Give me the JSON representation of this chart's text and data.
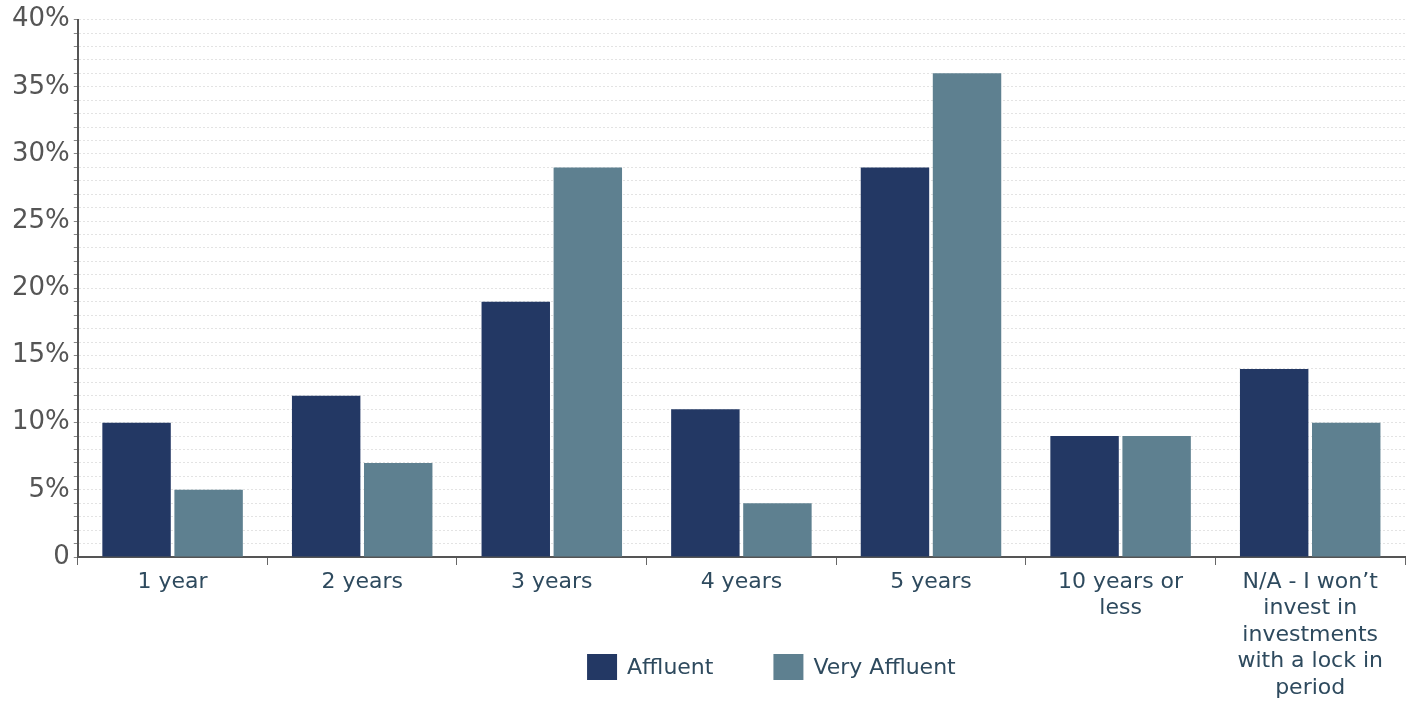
{
  "chart_data": {
    "type": "bar",
    "categories": [
      "1 year",
      "2 years",
      "3 years",
      "4 years",
      "5 years",
      "10 years or less",
      "N/A - I won’t invest in investments with a lock in period"
    ],
    "series": [
      {
        "name": "Affluent",
        "color": "#233864",
        "values": [
          10,
          12,
          19,
          11,
          29,
          9,
          14
        ]
      },
      {
        "name": "Very Affluent",
        "color": "#5e8090",
        "values": [
          5,
          7,
          29,
          4,
          36,
          9,
          10
        ]
      }
    ],
    "ylim": [
      0,
      40
    ],
    "yticks": [
      0,
      {
        "value": 1,
        "label": null
      },
      {
        "value": 2,
        "label": null
      },
      {
        "value": 3,
        "label": null
      },
      {
        "value": 4,
        "label": null
      },
      {
        "value": 5,
        "label": "5%"
      },
      {
        "value": 6,
        "label": null
      },
      {
        "value": 7,
        "label": null
      },
      {
        "value": 8,
        "label": null
      },
      {
        "value": 9,
        "label": null
      },
      {
        "value": 10,
        "label": "10%"
      },
      {
        "value": 11,
        "label": null
      },
      {
        "value": 12,
        "label": null
      },
      {
        "value": 13,
        "label": null
      },
      {
        "value": 14,
        "label": null
      },
      {
        "value": 15,
        "label": "15%"
      },
      {
        "value": 16,
        "label": null
      },
      {
        "value": 17,
        "label": null
      },
      {
        "value": 18,
        "label": null
      },
      {
        "value": 19,
        "label": null
      },
      {
        "value": 20,
        "label": "20%"
      },
      {
        "value": 21,
        "label": null
      },
      {
        "value": 22,
        "label": null
      },
      {
        "value": 23,
        "label": null
      },
      {
        "value": 24,
        "label": null
      },
      {
        "value": 25,
        "label": "25%"
      },
      {
        "value": 26,
        "label": null
      },
      {
        "value": 27,
        "label": null
      },
      {
        "value": 28,
        "label": null
      },
      {
        "value": 29,
        "label": null
      },
      {
        "value": 30,
        "label": "30%"
      },
      {
        "value": 31,
        "label": null
      },
      {
        "value": 32,
        "label": null
      },
      {
        "value": 33,
        "label": null
      },
      {
        "value": 34,
        "label": null
      },
      {
        "value": 35,
        "label": "35%"
      },
      {
        "value": 36,
        "label": null
      },
      {
        "value": 37,
        "label": null
      },
      {
        "value": 38,
        "label": null
      },
      {
        "value": 39,
        "label": null
      },
      {
        "value": 40,
        "label": "40%"
      }
    ],
    "grid": "y",
    "legend": "bottom"
  }
}
